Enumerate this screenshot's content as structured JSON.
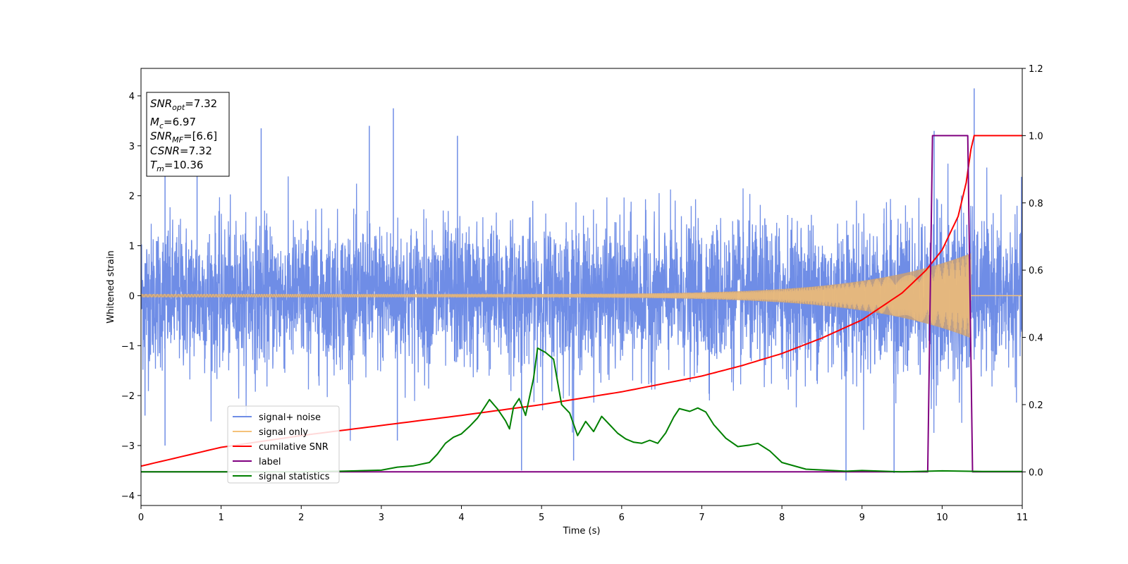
{
  "chart_data": {
    "type": "line",
    "xlabel": "Time (s)",
    "ylabel": "Whitened strain",
    "xlim": [
      0,
      11
    ],
    "ylim_left": [
      -4.2,
      4.55
    ],
    "ylim_right": [
      -0.1,
      1.2
    ],
    "x_ticks": [
      0,
      1,
      2,
      3,
      4,
      5,
      6,
      7,
      8,
      9,
      10,
      11
    ],
    "y_ticks_left": [
      -4,
      -3,
      -2,
      -1,
      0,
      1,
      2,
      3,
      4
    ],
    "y_ticks_right": [
      0.0,
      0.2,
      0.4,
      0.6,
      0.8,
      1.0,
      1.2
    ],
    "y_tick_labels_right": [
      "0.0",
      "0.2",
      "0.4",
      "0.6",
      "0.8",
      "1.0",
      "1.2"
    ],
    "grid": false,
    "legend_position": "lower-left",
    "annotation": {
      "snr_opt": "=7.32",
      "mc": "=6.97",
      "snr_mf": "=[6.6]",
      "cnsr": "=7.32",
      "tm": "=10.36"
    },
    "series": [
      {
        "name": "signal+ noise",
        "color": "#6f8de6",
        "axis": "left",
        "noise_std": 0.72,
        "spikes": [
          {
            "x": 0.3,
            "y": 2.6
          },
          {
            "x": 0.7,
            "y": 2.4
          },
          {
            "x": 1.5,
            "y": 3.35
          },
          {
            "x": 2.85,
            "y": 3.4
          },
          {
            "x": 3.15,
            "y": 3.75
          },
          {
            "x": 3.95,
            "y": 3.2
          },
          {
            "x": 4.75,
            "y": -3.5
          },
          {
            "x": 5.4,
            "y": -3.3
          },
          {
            "x": 8.8,
            "y": -3.7
          },
          {
            "x": 9.4,
            "y": -3.55
          },
          {
            "x": 9.9,
            "y": 3.3
          },
          {
            "x": 10.4,
            "y": 4.15
          },
          {
            "x": 0.05,
            "y": -2.4
          },
          {
            "x": 0.3,
            "y": -3.0
          },
          {
            "x": 3.2,
            "y": -2.9
          }
        ]
      },
      {
        "name": "signal only",
        "color": "#f5c27a",
        "axis": "left",
        "chirp_end": 10.36,
        "amplitude_at_end": 0.85,
        "amplitude_at_start": 0.03
      },
      {
        "name": "cumilative SNR",
        "color": "#ff0000",
        "axis": "right",
        "points": [
          [
            0,
            0.017
          ],
          [
            1,
            0.073
          ],
          [
            2,
            0.108
          ],
          [
            3,
            0.138
          ],
          [
            4,
            0.168
          ],
          [
            5,
            0.2
          ],
          [
            6,
            0.238
          ],
          [
            7,
            0.285
          ],
          [
            7.5,
            0.316
          ],
          [
            8,
            0.352
          ],
          [
            8.5,
            0.398
          ],
          [
            9,
            0.452
          ],
          [
            9.5,
            0.532
          ],
          [
            9.8,
            0.6
          ],
          [
            10.0,
            0.66
          ],
          [
            10.2,
            0.76
          ],
          [
            10.3,
            0.86
          ],
          [
            10.36,
            0.96
          ],
          [
            10.4,
            1.0
          ],
          [
            11,
            1.0
          ]
        ]
      },
      {
        "name": "label",
        "color": "#800080",
        "axis": "right",
        "points": [
          [
            0,
            0.0
          ],
          [
            9.82,
            0.0
          ],
          [
            9.88,
            1.0
          ],
          [
            10.32,
            1.0
          ],
          [
            10.38,
            0.0
          ],
          [
            11,
            0.0
          ]
        ]
      },
      {
        "name": "signal statistics",
        "color": "#008000",
        "axis": "right",
        "points": [
          [
            0,
            0.0
          ],
          [
            1,
            0.0
          ],
          [
            2,
            0.0
          ],
          [
            2.5,
            0.002
          ],
          [
            3.0,
            0.005
          ],
          [
            3.2,
            0.014
          ],
          [
            3.4,
            0.018
          ],
          [
            3.6,
            0.028
          ],
          [
            3.7,
            0.053
          ],
          [
            3.8,
            0.085
          ],
          [
            3.9,
            0.103
          ],
          [
            4.0,
            0.113
          ],
          [
            4.1,
            0.135
          ],
          [
            4.2,
            0.16
          ],
          [
            4.35,
            0.215
          ],
          [
            4.45,
            0.187
          ],
          [
            4.55,
            0.152
          ],
          [
            4.6,
            0.128
          ],
          [
            4.65,
            0.193
          ],
          [
            4.72,
            0.218
          ],
          [
            4.8,
            0.168
          ],
          [
            4.9,
            0.278
          ],
          [
            4.95,
            0.368
          ],
          [
            5.05,
            0.355
          ],
          [
            5.15,
            0.335
          ],
          [
            5.25,
            0.2
          ],
          [
            5.35,
            0.175
          ],
          [
            5.45,
            0.108
          ],
          [
            5.55,
            0.15
          ],
          [
            5.65,
            0.12
          ],
          [
            5.75,
            0.165
          ],
          [
            5.85,
            0.14
          ],
          [
            5.95,
            0.115
          ],
          [
            6.05,
            0.098
          ],
          [
            6.15,
            0.088
          ],
          [
            6.25,
            0.085
          ],
          [
            6.35,
            0.094
          ],
          [
            6.45,
            0.085
          ],
          [
            6.55,
            0.116
          ],
          [
            6.65,
            0.163
          ],
          [
            6.72,
            0.188
          ],
          [
            6.85,
            0.18
          ],
          [
            6.95,
            0.19
          ],
          [
            7.05,
            0.178
          ],
          [
            7.15,
            0.14
          ],
          [
            7.3,
            0.1
          ],
          [
            7.45,
            0.075
          ],
          [
            7.6,
            0.08
          ],
          [
            7.7,
            0.085
          ],
          [
            7.85,
            0.062
          ],
          [
            8.0,
            0.028
          ],
          [
            8.3,
            0.008
          ],
          [
            8.8,
            0.002
          ],
          [
            9.0,
            0.004
          ],
          [
            9.5,
            0.0
          ],
          [
            10.0,
            0.003
          ],
          [
            10.5,
            0.001
          ],
          [
            11,
            0.001
          ]
        ]
      }
    ]
  }
}
